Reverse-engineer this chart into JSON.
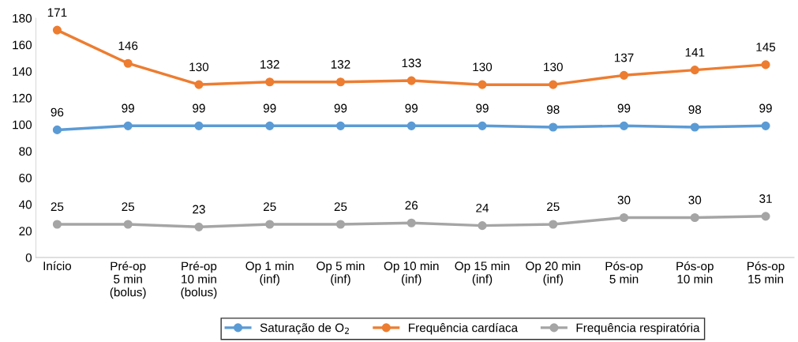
{
  "chart_data": {
    "type": "line",
    "categories": [
      "Início",
      "Pré-op\n5 min\n(bolus)",
      "Pré-op\n10 min\n(bolus)",
      "Op 1 min\n(inf)",
      "Op 5 min\n(inf)",
      "Op 10 min\n(inf)",
      "Op 15 min\n(inf)",
      "Op 20 min\n(inf)",
      "Pós-op\n5 min",
      "Pós-op\n10 min",
      "Pós-op\n15 min"
    ],
    "series": [
      {
        "name": "Saturação de O$_{2}$",
        "color": "#5b9bd5",
        "values": [
          96,
          99,
          99,
          99,
          99,
          99,
          99,
          98,
          99,
          98,
          99
        ]
      },
      {
        "name": "Frequência cardíaca",
        "color": "#ed7d31",
        "values": [
          171,
          146,
          130,
          132,
          132,
          133,
          130,
          130,
          137,
          141,
          145
        ]
      },
      {
        "name": "Frequência respiratória",
        "color": "#a5a5a5",
        "values": [
          25,
          25,
          23,
          25,
          25,
          26,
          24,
          25,
          30,
          30,
          31
        ]
      }
    ],
    "ylim": [
      0,
      180
    ],
    "yticks": [
      0,
      20,
      40,
      60,
      80,
      100,
      120,
      140,
      160,
      180
    ],
    "grid": false,
    "legend": "bottom",
    "marker": "circle",
    "line_style": "solid",
    "data_labels": true
  }
}
